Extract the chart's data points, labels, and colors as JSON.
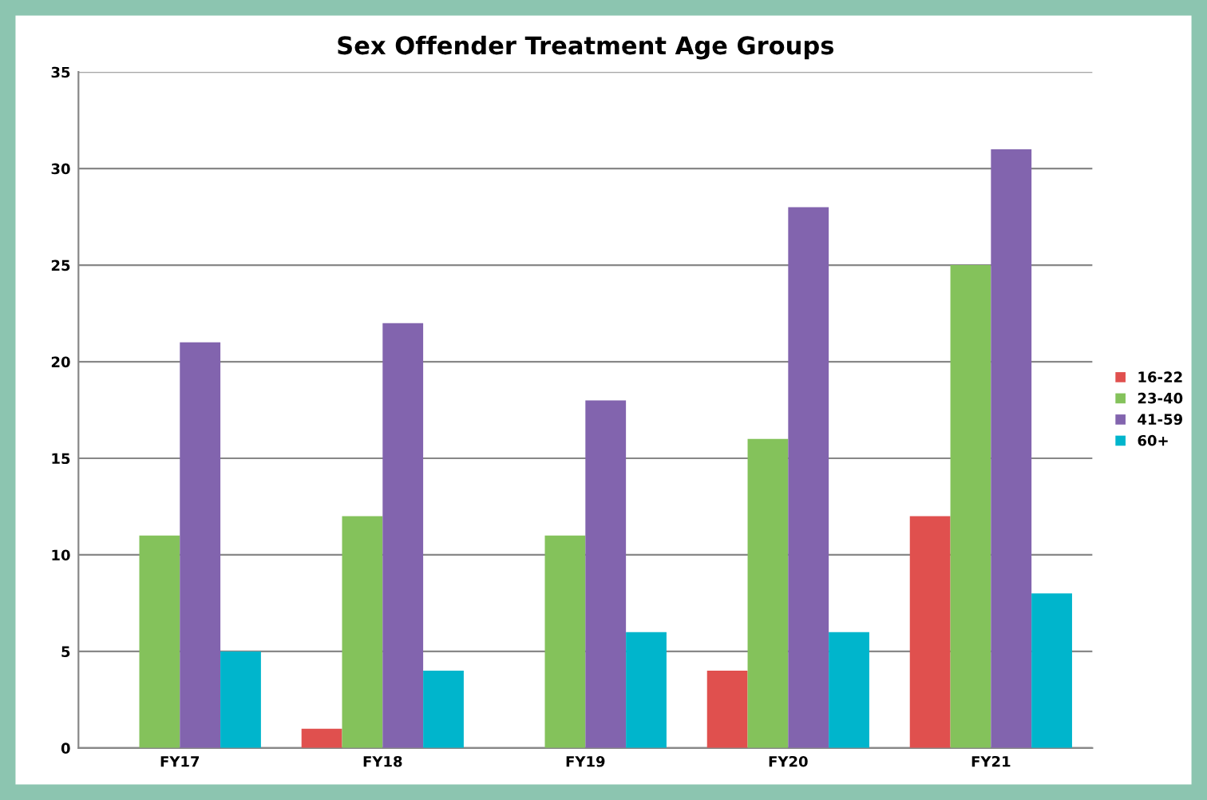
{
  "chart_data": {
    "type": "bar",
    "title": "Sex Offender Treatment Age Groups",
    "categories": [
      "FY17",
      "FY18",
      "FY19",
      "FY20",
      "FY21"
    ],
    "series": [
      {
        "name": "16-22",
        "color": "#e0504e",
        "values": [
          0,
          1,
          0,
          4,
          12
        ]
      },
      {
        "name": "23-40",
        "color": "#84c25b",
        "values": [
          11,
          12,
          11,
          16,
          25
        ]
      },
      {
        "name": "41-59",
        "color": "#8264ae",
        "values": [
          21,
          22,
          18,
          28,
          31
        ]
      },
      {
        "name": "60+",
        "color": "#00b5cc",
        "values": [
          5,
          4,
          6,
          6,
          8
        ]
      }
    ],
    "ylim": [
      0,
      35
    ],
    "yticks": [
      0,
      5,
      10,
      15,
      20,
      25,
      30,
      35
    ],
    "grid": "y",
    "legend": "right"
  }
}
